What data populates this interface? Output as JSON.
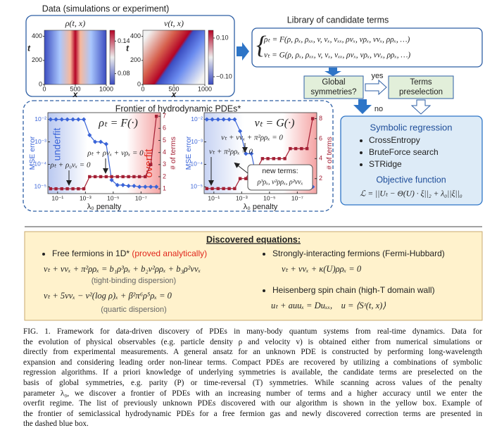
{
  "data_panel": {
    "title": "Data (simulations or experiment)",
    "heatmaps": [
      {
        "title": "ρ(t, x)",
        "y_label": "t",
        "x_label": "x",
        "ylim": [
          0,
          450
        ],
        "yticks": [
          0,
          200,
          400
        ],
        "xlim": [
          0,
          1000
        ],
        "xticks": [
          0,
          500,
          1000
        ],
        "clim": [
          0.06,
          0.16
        ],
        "colorbar_ticks": [
          0.14,
          0.08
        ]
      },
      {
        "title": "v(t, x)",
        "y_label": "t",
        "x_label": "x",
        "ylim": [
          0,
          450
        ],
        "yticks": [
          0,
          200,
          400
        ],
        "xlim": [
          0,
          1000
        ],
        "xticks": [
          0,
          500,
          1000
        ],
        "clim": [
          -0.14,
          0.14
        ],
        "colorbar_ticks": [
          {
            "value": 0.1,
            "label": "0.10"
          },
          {
            "value": -0.1,
            "label": "−0.10"
          }
        ]
      }
    ]
  },
  "library": {
    "title": "Library of candidate terms",
    "equations": [
      "ρₜ = F(ρ, ρₓ, ρₓₓ, v, vₓ, vₓₓ, ρvₓ, vρₓ, vvₓ, ρρₓ, …)",
      "vₜ = G(ρ, ρₓ, ρₓₓ, v, vₓ, vₓₓ, ρvₓ, vρₓ, vvₓ, ρρₓ, …)"
    ]
  },
  "flow": {
    "symmetries": [
      "Global",
      "symmetries?"
    ],
    "yes": "yes",
    "no": "no",
    "preselection": [
      "Terms",
      "preselection"
    ]
  },
  "regression": {
    "title": "Symbolic regression",
    "methods": [
      "CrossEntropy",
      "BruteForce search",
      "STRidge"
    ],
    "objective_title": "Objective function",
    "objective": "ℒ = ||Uₜ − Θ(U) · ξ||₂ + λ₀||ξ||₀"
  },
  "frontier": {
    "title": "Frontier of hydrodynamic PDEs*",
    "x_label": "λ₀ penalty",
    "y_label": "MSE error",
    "y2_label": "# of terms",
    "mse_color": "#3a64d8",
    "terms_color": "#a31f34",
    "x": [
      0.32,
      0.13,
      0.05,
      0.02,
      0.0079,
      0.0032,
      0.0013,
      0.0005,
      0.0002,
      7.9e-05,
      3.2e-05,
      1.3e-05,
      5e-06,
      2e-06,
      7.9e-07,
      3.2e-07,
      1.3e-07,
      5e-08,
      2e-08,
      7.9e-09
    ],
    "xlim": [
      0.5,
      4e-09
    ],
    "xticks": [
      {
        "value": 0.1,
        "label": "10⁻¹"
      },
      {
        "value": 0.001,
        "label": "10⁻³"
      },
      {
        "value": 1e-05,
        "label": "10⁻⁵"
      },
      {
        "value": 1e-07,
        "label": "10⁻⁷"
      }
    ],
    "ylim": [
      5e-06,
      0.02
    ],
    "yticks": [
      {
        "value": 0.01,
        "label": "10⁻²"
      },
      {
        "value": 0.001,
        "label": "10⁻³"
      },
      {
        "value": 0.0001,
        "label": "10⁻⁴"
      },
      {
        "value": 1e-05,
        "label": "10⁻⁵"
      }
    ],
    "plots": [
      {
        "equation": "ρₜ = F(·)",
        "underfit": "underfit",
        "overfit": "overfit",
        "y2lim": [
          0.6,
          7.3
        ],
        "y2ticks": [
          1,
          2,
          3,
          4,
          5,
          6,
          7
        ],
        "mse": [
          0.01,
          0.01,
          0.01,
          0.01,
          0.01,
          0.01,
          0.01,
          0.002,
          0.001,
          0.001,
          0.0008,
          2e-05,
          1.2e-05,
          1.2e-05,
          1.1e-05,
          1.1e-05,
          1e-05,
          1e-05,
          1e-05,
          1e-05
        ],
        "terms": [
          1,
          1,
          1,
          1,
          1,
          1,
          1,
          2,
          2,
          2,
          2,
          2,
          2,
          2,
          2,
          2,
          2,
          2,
          3,
          7
        ],
        "annotations": [
          "ρₜ + ρvₓ + vρₓ = 0",
          "ρₜ + ρ₀vₓ = 0"
        ]
      },
      {
        "equation": "vₜ = G(·)",
        "y2lim": [
          0.5,
          8.6
        ],
        "y2ticks": [
          2,
          4,
          6,
          8
        ],
        "mse": [
          0.01,
          0.01,
          0.01,
          0.01,
          0.01,
          0.01,
          0.003,
          0.0003,
          0.0003,
          2e-05,
          1.5e-05,
          1.5e-05,
          1.5e-05,
          1.5e-05,
          1.4e-05,
          1.2e-05,
          1.2e-05,
          1e-05,
          1e-05,
          1e-05
        ],
        "terms": [
          1,
          1,
          1,
          1,
          1,
          1,
          2,
          2,
          3,
          3,
          4,
          4,
          4,
          4,
          4,
          5,
          5,
          5,
          5,
          8
        ],
        "annotations": [
          "vₜ + vvₓ + π²ρρₓ = 0",
          "vₜ + π²ρρₓ = 0"
        ],
        "new_terms_title": "new terms:",
        "new_terms": "ρ³ρₓ, v²ρρₓ, ρ²vvₓ"
      }
    ]
  },
  "discovered": {
    "title": "Discovered equations:",
    "left": [
      {
        "system": "Free fermions  in 1D*",
        "note": "(proved analytically)",
        "equation": "vₜ + vvₓ + π²ρρₓ = b₁ρ³ρₓ + b₂v²ρρₓ + b₃ρ²vvₓ",
        "dispersion": "(tight-binding dispersion)"
      },
      {
        "equation": "vₜ + 5vvₓ − v²(log ρ)ₓ + β²π⁶ρ⁵ρₓ = 0",
        "dispersion": "(quartic dispersion)"
      }
    ],
    "right": [
      {
        "system": "Strongly-interacting fermions (Fermi-Hubbard)",
        "equation": "vₜ + vvₓ + κ(U)ρρₓ = 0"
      },
      {
        "system": "Heisenberg spin chain (high-T domain wall)",
        "equation": "uₜ + auuₓ = Duₓₓ,    u = ⟨Sᶻ(t, x)⟩"
      }
    ]
  },
  "caption": [
    "FIG. 1.  Framework for data-driven discovery of PDEs in many-body quantum systems from real-time dynamics.  Data for",
    "the evolution of physical observables (e.g. particle density ρ and velocity v) is obtained either from numerical simulations or",
    "directly from experimental measurements. A general ansatz for an unknown PDE is constructed by performing long-wavelength",
    "expansion and considering leading order non-linear terms. Compact PDEs are recovered by utilizing a combinations of symbolic",
    "regression algorithms. If a priori knowledge of underlying symmetries is available, the candidate terms are preselected on the",
    "basis of global symmetries, e.g. parity (P) or time-reversal (T) symmetries.  While scanning across values of the penalty",
    "parameter λ₀, we discover a frontier of PDEs with an increasing number of terms and a higher accuracy until we enter the",
    "overfit regime. The list of previously unknown PDEs discovered with our algorithm is shown in the yellow box. Example of",
    "the frontier of semiclassical hydrodynamic PDEs for a free fermion gas and newly discovered correction terms are presented in",
    "the dashed blue box."
  ]
}
